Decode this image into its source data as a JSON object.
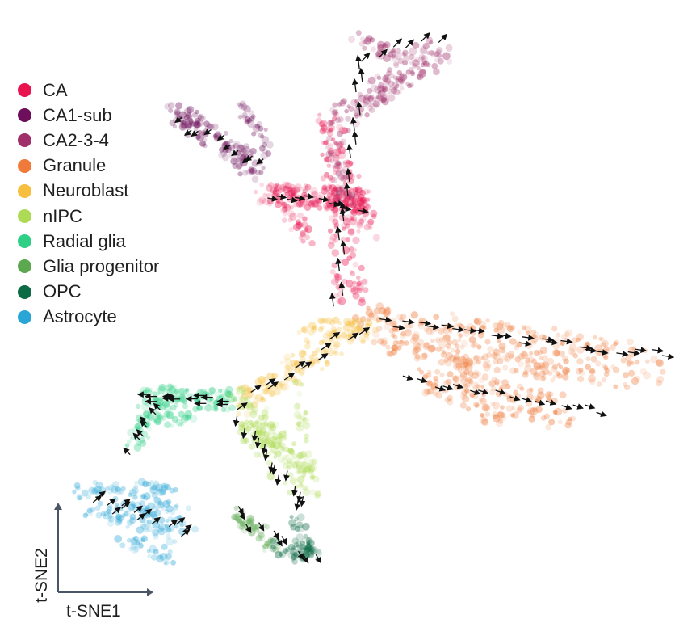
{
  "chart_data": {
    "type": "scatter",
    "title": "",
    "xlabel": "t-SNE1",
    "ylabel": "t-SNE2",
    "overlay": "RNA velocity arrows",
    "legend_position": "top-left",
    "grid": false,
    "series": [
      {
        "name": "CA",
        "color": "#e8134f"
      },
      {
        "name": "CA1-sub",
        "color": "#6d0f5a"
      },
      {
        "name": "CA2-3-4",
        "color": "#a0306a"
      },
      {
        "name": "Granule",
        "color": "#ef7a3a"
      },
      {
        "name": "Neuroblast",
        "color": "#f6bf3f"
      },
      {
        "name": "nIPC",
        "color": "#aedb55"
      },
      {
        "name": "Radial glia",
        "color": "#2fcf86"
      },
      {
        "name": "Glia progenitor",
        "color": "#5ba84f"
      },
      {
        "name": "OPC",
        "color": "#0c6a45"
      },
      {
        "name": "Astrocyte",
        "color": "#2aa6d6"
      }
    ]
  }
}
